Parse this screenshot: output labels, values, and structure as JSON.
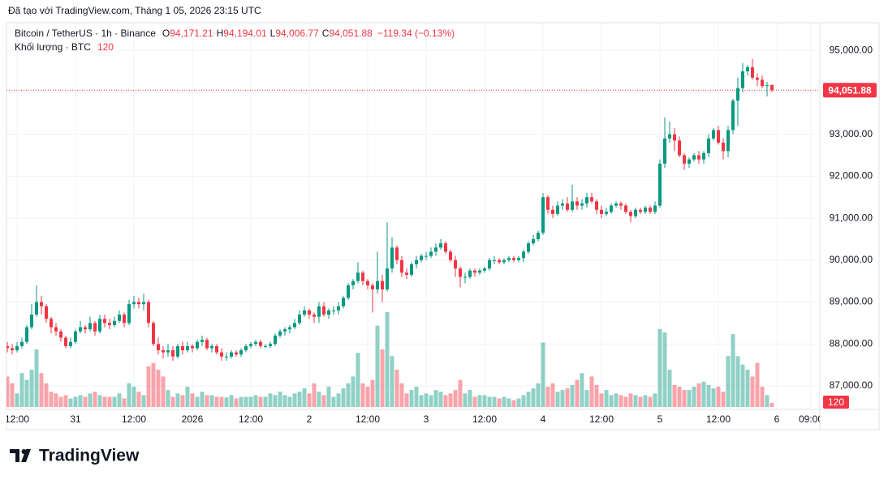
{
  "header": {
    "created": "Đã tạo với TradingView.com, Tháng 1 05, 2026 23:15 UTC",
    "symbol": "Bitcoin / TetherUS · 1h · Binance",
    "ohlc": [
      {
        "key": "O",
        "text": "94,171.21"
      },
      {
        "key": "H",
        "text": "94,194.01"
      },
      {
        "key": "L",
        "text": "94,006.77"
      },
      {
        "key": "C",
        "text": "94,051.88"
      }
    ],
    "change": "−119.34 (−0.13%)",
    "volume_title": "Khối lượng · BTC",
    "volume_text": "120"
  },
  "logo": "TradingView",
  "chart_data": {
    "type": "candlestick",
    "up_color": "#089981",
    "down_color": "#f23645",
    "grid": true,
    "ylim": [
      86440,
      95660
    ],
    "yticks": [
      {
        "value": 87000,
        "label": "87,000.00"
      },
      {
        "value": 88000,
        "label": "88,000.00"
      },
      {
        "value": 89000,
        "label": "89,000.00"
      },
      {
        "value": 90000,
        "label": "90,000.00"
      },
      {
        "value": 91000,
        "label": "91,000.00"
      },
      {
        "value": 92000,
        "label": "92,000.00"
      },
      {
        "value": 93000,
        "label": "93,000.00"
      },
      {
        "value": 94000,
        "label": "94,000.00"
      },
      {
        "value": 95000,
        "label": "95,000.00"
      }
    ],
    "last_close_label": "94,051.88",
    "last_volume_label": "120",
    "categories": [
      null,
      null,
      "12:00",
      null,
      null,
      null,
      null,
      null,
      null,
      null,
      null,
      null,
      null,
      null,
      "31",
      null,
      null,
      null,
      null,
      null,
      null,
      null,
      null,
      null,
      null,
      null,
      "12:00",
      null,
      null,
      null,
      null,
      null,
      null,
      null,
      null,
      null,
      null,
      null,
      "2026",
      null,
      null,
      null,
      null,
      null,
      null,
      null,
      null,
      null,
      null,
      null,
      "12:00",
      null,
      null,
      null,
      null,
      null,
      null,
      null,
      null,
      null,
      null,
      null,
      "2",
      null,
      null,
      null,
      null,
      null,
      null,
      null,
      null,
      null,
      null,
      null,
      "12:00",
      null,
      null,
      null,
      null,
      null,
      null,
      null,
      null,
      null,
      null,
      null,
      "3",
      null,
      null,
      null,
      null,
      null,
      null,
      null,
      null,
      null,
      null,
      null,
      "12:00",
      null,
      null,
      null,
      null,
      null,
      null,
      null,
      null,
      null,
      null,
      null,
      "4",
      null,
      null,
      null,
      null,
      null,
      null,
      null,
      null,
      null,
      null,
      null,
      "12:00",
      null,
      null,
      null,
      null,
      null,
      null,
      null,
      null,
      null,
      null,
      null,
      "5",
      null,
      null,
      null,
      null,
      null,
      null,
      null,
      null,
      null,
      null,
      null,
      "12:00",
      null,
      null,
      null,
      null,
      null,
      null,
      null,
      null,
      null,
      null,
      null,
      "6",
      null,
      null,
      null,
      null,
      null,
      null,
      "09:00"
    ],
    "open": [
      87950,
      87900,
      87850,
      87950,
      88050,
      88400,
      88700,
      89000,
      88900,
      88600,
      88400,
      88300,
      88150,
      87950,
      88050,
      88300,
      88400,
      88350,
      88500,
      88300,
      88600,
      88500,
      88450,
      88550,
      88700,
      88500,
      88950,
      89000,
      88950,
      89000,
      88500,
      88000,
      87850,
      87800,
      87850,
      87700,
      87950,
      87850,
      87950,
      87900,
      88050,
      88100,
      87900,
      87950,
      87800,
      87700,
      87700,
      87800,
      87750,
      87850,
      87950,
      88000,
      88050,
      87950,
      87950,
      88000,
      88200,
      88300,
      88350,
      88400,
      88500,
      88700,
      88800,
      88700,
      88650,
      88900,
      88700,
      88800,
      88800,
      88900,
      89100,
      89400,
      89500,
      89700,
      89500,
      89400,
      89300,
      89500,
      89300,
      89800,
      90300,
      90000,
      89700,
      89650,
      89900,
      90000,
      90100,
      90100,
      90200,
      90300,
      90400,
      90200,
      90000,
      89800,
      89600,
      89600,
      89750,
      89700,
      89750,
      89800,
      90000,
      90000,
      89950,
      90000,
      90050,
      90000,
      90050,
      90200,
      90400,
      90500,
      90650,
      91500,
      91200,
      91100,
      91300,
      91350,
      91200,
      91400,
      91300,
      91350,
      91500,
      91400,
      91200,
      91100,
      91150,
      91300,
      91350,
      91300,
      91150,
      91050,
      91200,
      91150,
      91250,
      91150,
      91300,
      92300,
      92900,
      93000,
      92850,
      92500,
      92300,
      92400,
      92500,
      92400,
      92550,
      92900,
      93100,
      92800,
      92600,
      93100,
      93800,
      94100,
      94500,
      94600,
      94350,
      94300,
      94150,
      94171.21,
      null,
      null,
      null,
      null,
      null,
      null,
      null,
      null
    ],
    "high": [
      88050,
      88000,
      88050,
      88150,
      88450,
      88950,
      89400,
      89150,
      88950,
      88650,
      88500,
      88350,
      88200,
      88150,
      88350,
      88550,
      88450,
      88650,
      88550,
      88700,
      88700,
      88600,
      88650,
      88800,
      88750,
      89050,
      89150,
      89100,
      89200,
      89050,
      88550,
      88150,
      87950,
      88000,
      87950,
      88000,
      88050,
      88050,
      88000,
      88100,
      88200,
      88150,
      88000,
      88000,
      87900,
      87800,
      87850,
      87850,
      87900,
      88000,
      88050,
      88100,
      88100,
      88000,
      88050,
      88250,
      88350,
      88400,
      88450,
      88600,
      88800,
      88900,
      88850,
      88750,
      89000,
      89000,
      88850,
      88900,
      89000,
      89150,
      89450,
      89550,
      89950,
      89750,
      89550,
      89450,
      90200,
      89650,
      90900,
      90550,
      90350,
      90100,
      89800,
      89950,
      90100,
      90150,
      90200,
      90300,
      90400,
      90500,
      90450,
      90250,
      90100,
      89850,
      89700,
      89800,
      89800,
      89800,
      89850,
      90050,
      90100,
      90050,
      90050,
      90100,
      90100,
      90100,
      90250,
      90450,
      90600,
      90700,
      91600,
      91550,
      91300,
      91400,
      91450,
      91500,
      91800,
      91500,
      91450,
      91600,
      91600,
      91450,
      91300,
      91250,
      91350,
      91400,
      91400,
      91350,
      91200,
      91250,
      91250,
      91300,
      91300,
      91400,
      92400,
      93400,
      93300,
      93150,
      92950,
      92550,
      92450,
      92550,
      92600,
      92600,
      93000,
      93150,
      93200,
      92900,
      93200,
      93850,
      94350,
      94700,
      94650,
      94800,
      94450,
      94400,
      94250,
      94194.01,
      null,
      null,
      null,
      null,
      null,
      null,
      null,
      null
    ],
    "low": [
      87800,
      87750,
      87800,
      87900,
      88000,
      88350,
      88650,
      88700,
      88500,
      88250,
      88200,
      88050,
      87900,
      87900,
      88000,
      88250,
      88250,
      88300,
      88200,
      88250,
      88400,
      88350,
      88400,
      88500,
      88400,
      88450,
      88850,
      88850,
      88800,
      88400,
      87950,
      87750,
      87650,
      87700,
      87600,
      87650,
      87750,
      87800,
      87800,
      87850,
      87950,
      87850,
      87800,
      87750,
      87600,
      87600,
      87650,
      87700,
      87700,
      87800,
      87900,
      87950,
      87900,
      87900,
      87900,
      87950,
      88150,
      88200,
      88250,
      88350,
      88450,
      88650,
      88600,
      88500,
      88500,
      88650,
      88600,
      88700,
      88700,
      88850,
      89050,
      89300,
      89450,
      89400,
      89300,
      88750,
      89200,
      89000,
      89250,
      89700,
      89900,
      89600,
      89550,
      89600,
      89800,
      89950,
      90000,
      90050,
      90100,
      90250,
      90150,
      89950,
      89600,
      89350,
      89450,
      89550,
      89600,
      89650,
      89700,
      89750,
      89900,
      89900,
      89900,
      89950,
      89950,
      89950,
      89950,
      90150,
      90350,
      90450,
      90600,
      91100,
      91000,
      91050,
      91200,
      91150,
      91150,
      91200,
      91200,
      91250,
      91350,
      91100,
      91000,
      91050,
      91100,
      91250,
      91200,
      91100,
      90900,
      91000,
      91100,
      91100,
      91100,
      91100,
      91250,
      92200,
      92800,
      92600,
      92450,
      92150,
      92200,
      92350,
      92300,
      92300,
      92450,
      92850,
      92750,
      92400,
      92450,
      93000,
      93200,
      94000,
      94400,
      94300,
      94150,
      94100,
      93900,
      94006.77,
      null,
      null,
      null,
      null,
      null,
      null,
      null,
      null
    ],
    "close": [
      87900,
      87850,
      87950,
      88050,
      88400,
      88700,
      89000,
      88900,
      88600,
      88400,
      88300,
      88150,
      87950,
      88050,
      88300,
      88400,
      88350,
      88500,
      88300,
      88600,
      88500,
      88450,
      88550,
      88700,
      88500,
      88950,
      89000,
      88950,
      89000,
      88500,
      88000,
      87850,
      87800,
      87850,
      87700,
      87950,
      87850,
      87950,
      87900,
      88050,
      88100,
      87900,
      87950,
      87800,
      87700,
      87700,
      87800,
      87750,
      87850,
      87950,
      88000,
      88050,
      87950,
      87950,
      88000,
      88200,
      88300,
      88350,
      88400,
      88500,
      88700,
      88800,
      88700,
      88650,
      88900,
      88700,
      88800,
      88800,
      88900,
      89100,
      89400,
      89500,
      89700,
      89500,
      89400,
      89300,
      89500,
      89300,
      89800,
      90300,
      90000,
      89700,
      89650,
      89900,
      90000,
      90100,
      90100,
      90200,
      90300,
      90400,
      90200,
      90000,
      89800,
      89600,
      89600,
      89750,
      89700,
      89750,
      89800,
      90000,
      90000,
      89950,
      90000,
      90050,
      90000,
      90050,
      90200,
      90400,
      90500,
      90650,
      91500,
      91200,
      91100,
      91300,
      91350,
      91200,
      91400,
      91300,
      91350,
      91500,
      91400,
      91200,
      91100,
      91150,
      91300,
      91350,
      91300,
      91150,
      91050,
      91200,
      91150,
      91250,
      91150,
      91300,
      92300,
      92900,
      93000,
      92850,
      92500,
      92300,
      92400,
      92500,
      92400,
      92550,
      92900,
      93100,
      92800,
      92600,
      93100,
      93800,
      94100,
      94500,
      94600,
      94350,
      94300,
      94150,
      94171.21,
      94051.88,
      null,
      null,
      null,
      null,
      null,
      null,
      null,
      null
    ],
    "volume": [
      900,
      700,
      400,
      1000,
      800,
      1100,
      1700,
      1000,
      700,
      450,
      400,
      300,
      350,
      250,
      300,
      350,
      300,
      400,
      450,
      350,
      300,
      300,
      300,
      400,
      250,
      700,
      600,
      450,
      350,
      1200,
      1300,
      1100,
      900,
      500,
      300,
      400,
      350,
      600,
      400,
      300,
      450,
      350,
      350,
      300,
      300,
      280,
      350,
      250,
      300,
      300,
      300,
      350,
      300,
      300,
      400,
      350,
      450,
      350,
      300,
      400,
      450,
      550,
      400,
      700,
      450,
      350,
      600,
      300,
      400,
      550,
      700,
      900,
      1600,
      700,
      600,
      800,
      2400,
      1700,
      2800,
      1500,
      1100,
      700,
      400,
      500,
      600,
      350,
      400,
      350,
      500,
      450,
      350,
      400,
      500,
      800,
      400,
      500,
      300,
      350,
      350,
      300,
      300,
      250,
      300,
      250,
      200,
      250,
      350,
      450,
      550,
      700,
      1900,
      600,
      700,
      450,
      500,
      550,
      650,
      800,
      1000,
      500,
      900,
      650,
      400,
      500,
      350,
      400,
      350,
      300,
      400,
      350,
      300,
      350,
      300,
      400,
      2300,
      2200,
      1100,
      650,
      600,
      500,
      500,
      600,
      700,
      750,
      650,
      550,
      600,
      450,
      1500,
      2150,
      1500,
      1250,
      1100,
      900,
      1300,
      600,
      350,
      120,
      null,
      null,
      null,
      null,
      null,
      null,
      null,
      null
    ]
  }
}
